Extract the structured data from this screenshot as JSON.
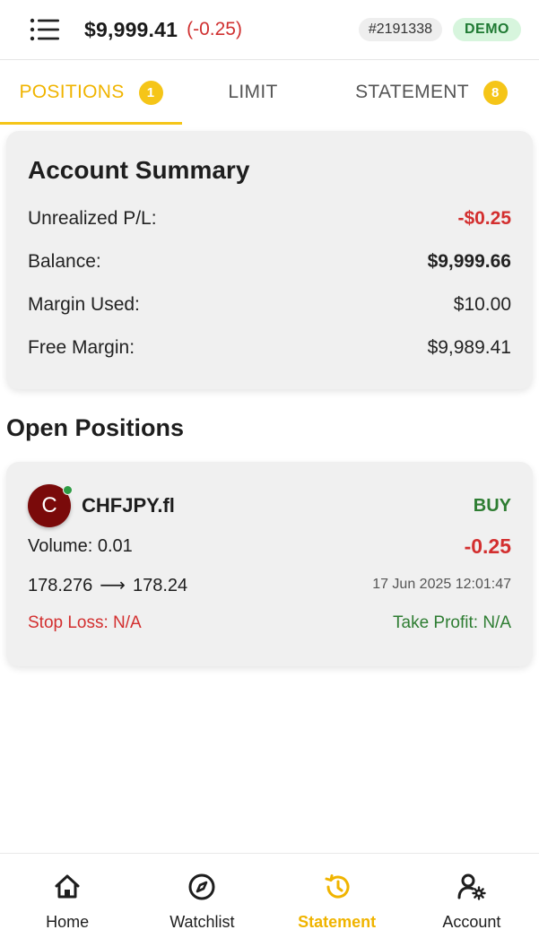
{
  "header": {
    "balance": "$9,999.41",
    "balance_change": "(-0.25)",
    "account_id": "#2191338",
    "mode_badge": "DEMO"
  },
  "tabs": [
    {
      "label": "POSITIONS",
      "count": "1",
      "active": true
    },
    {
      "label": "LIMIT"
    },
    {
      "label": "STATEMENT",
      "count": "8"
    }
  ],
  "summary": {
    "title": "Account Summary",
    "rows": [
      {
        "label": "Unrealized P/L:",
        "value": "-$0.25"
      },
      {
        "label": "Balance:",
        "value": "$9,999.66"
      },
      {
        "label": "Margin Used:",
        "value": "$10.00"
      },
      {
        "label": "Free Margin:",
        "value": "$9,989.41"
      }
    ]
  },
  "open_positions": {
    "title": "Open Positions",
    "items": [
      {
        "avatar_letter": "C",
        "symbol": "CHFJPY.fl",
        "side": "BUY",
        "volume": "Volume: 0.01",
        "pl": "-0.25",
        "open_price": "178.276",
        "current_price": "178.24",
        "timestamp": "17 Jun 2025 12:01:47",
        "stop_loss": "Stop Loss: N/A",
        "take_profit": "Take Profit: N/A"
      }
    ]
  },
  "bottom_nav": [
    {
      "label": "Home",
      "icon": "home-icon"
    },
    {
      "label": "Watchlist",
      "icon": "compass-icon"
    },
    {
      "label": "Statement",
      "icon": "history-icon",
      "active": true
    },
    {
      "label": "Account",
      "icon": "user-settings-icon"
    }
  ],
  "colors": {
    "accent": "#f5c518",
    "negative": "#d32f2f",
    "positive": "#2e7d32",
    "demo_bg": "#d7f5dd"
  }
}
